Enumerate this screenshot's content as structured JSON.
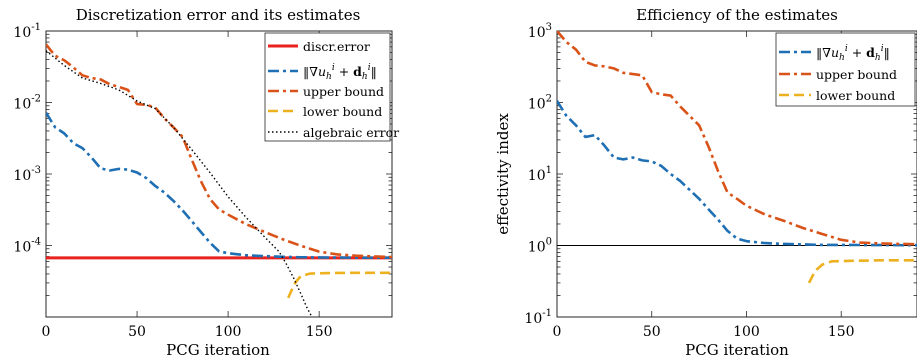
{
  "chart_data": [
    {
      "type": "line",
      "title": "Discretization error and its estimates",
      "xlabel": "PCG iteration",
      "ylabel": "",
      "xlim": [
        0,
        190
      ],
      "ylim": [
        1e-05,
        0.1
      ],
      "yscale": "log",
      "x_ticks": [
        "0",
        "50",
        "100",
        "150"
      ],
      "y_tick_base": "10",
      "y_tick_exponents": [
        "-1",
        "-2",
        "-3",
        "-4"
      ],
      "legend_position": "top-right",
      "series": [
        {
          "name": "discr.error",
          "color": "#e8231f",
          "dash": "solid",
          "points": [
            [
              0,
              6.72e-05
            ],
            [
              190,
              6.72e-05
            ]
          ]
        },
        {
          "name": "‖∇u_h^i + d_h^i‖",
          "color": "#1f6fb4",
          "dash": "dashdot",
          "points": [
            [
              0,
              0.0072
            ],
            [
              5,
              0.0045
            ],
            [
              10,
              0.0037
            ],
            [
              15,
              0.0027
            ],
            [
              20,
              0.0023
            ],
            [
              25,
              0.0017
            ],
            [
              30,
              0.0012
            ],
            [
              35,
              0.00112
            ],
            [
              40,
              0.00118
            ],
            [
              45,
              0.00115
            ],
            [
              50,
              0.00105
            ],
            [
              55,
              0.00088
            ],
            [
              60,
              0.00068
            ],
            [
              65,
              0.00055
            ],
            [
              70,
              0.00042
            ],
            [
              75,
              0.00031
            ],
            [
              80,
              0.00022
            ],
            [
              85,
              0.000155
            ],
            [
              90,
              0.00011
            ],
            [
              95,
              8.3e-05
            ],
            [
              100,
              7.8e-05
            ],
            [
              110,
              7.3e-05
            ],
            [
              120,
              7.1e-05
            ],
            [
              130,
              6.95e-05
            ],
            [
              140,
              6.85e-05
            ],
            [
              160,
              6.78e-05
            ],
            [
              190,
              6.74e-05
            ]
          ]
        },
        {
          "name": "upper bound",
          "color": "#d95319",
          "dash": "dashdot",
          "points": [
            [
              0,
              0.065
            ],
            [
              5,
              0.045
            ],
            [
              10,
              0.039
            ],
            [
              15,
              0.031
            ],
            [
              20,
              0.024
            ],
            [
              25,
              0.022
            ],
            [
              30,
              0.021
            ],
            [
              35,
              0.018
            ],
            [
              40,
              0.0165
            ],
            [
              45,
              0.015
            ],
            [
              50,
              0.0095
            ],
            [
              55,
              0.0093
            ],
            [
              60,
              0.0085
            ],
            [
              65,
              0.006
            ],
            [
              70,
              0.0045
            ],
            [
              75,
              0.0033
            ],
            [
              80,
              0.0016
            ],
            [
              85,
              0.0008
            ],
            [
              90,
              0.00045
            ],
            [
              95,
              0.00032
            ],
            [
              100,
              0.00027
            ],
            [
              110,
              0.000198
            ],
            [
              120,
              0.000155
            ],
            [
              130,
              0.000122
            ],
            [
              140,
              9.9e-05
            ],
            [
              150,
              8.2e-05
            ],
            [
              160,
              7.5e-05
            ],
            [
              170,
              7.2e-05
            ],
            [
              190,
              6.9e-05
            ]
          ]
        },
        {
          "name": "lower bound",
          "color": "#edb120",
          "dash": "dashed",
          "points": [
            [
              133,
              1.85e-05
            ],
            [
              135,
              2.4e-05
            ],
            [
              137,
              3.05e-05
            ],
            [
              140,
              3.75e-05
            ],
            [
              145,
              4.05e-05
            ],
            [
              155,
              4.12e-05
            ],
            [
              170,
              4.15e-05
            ],
            [
              190,
              4.15e-05
            ]
          ]
        },
        {
          "name": "algebraic error",
          "color": "#000000",
          "dash": "dotted",
          "points": [
            [
              0,
              0.053
            ],
            [
              10,
              0.033
            ],
            [
              20,
              0.022
            ],
            [
              30,
              0.0185
            ],
            [
              40,
              0.015
            ],
            [
              50,
              0.0105
            ],
            [
              60,
              0.0082
            ],
            [
              70,
              0.0045
            ],
            [
              80,
              0.0022
            ],
            [
              90,
              0.00105
            ],
            [
              100,
              0.00048
            ],
            [
              110,
              0.000245
            ],
            [
              120,
              0.000132
            ],
            [
              128,
              8.2e-05
            ],
            [
              132,
              5.5e-05
            ],
            [
              136,
              3.5e-05
            ],
            [
              140,
              2.1e-05
            ],
            [
              143,
              1.4e-05
            ],
            [
              146,
              1e-05
            ]
          ]
        }
      ]
    },
    {
      "type": "line",
      "title": "Efficiency of the estimates",
      "xlabel": "PCG iteration",
      "ylabel": "effectivity index",
      "xlim": [
        0,
        190
      ],
      "ylim": [
        0.1,
        1000
      ],
      "yscale": "log",
      "x_ticks": [
        "0",
        "50",
        "100",
        "150"
      ],
      "y_tick_base": "10",
      "y_tick_exponents": [
        "3",
        "2",
        "1",
        "0",
        "-1"
      ],
      "reference_line": 1,
      "legend_position": "top-right",
      "series": [
        {
          "name": "‖∇u_h^i + d_h^i‖",
          "color": "#1f6fb4",
          "dash": "dashdot",
          "points": [
            [
              0,
              105
            ],
            [
              5,
              65
            ],
            [
              10,
              48
            ],
            [
              15,
              33
            ],
            [
              20,
              35
            ],
            [
              25,
              25
            ],
            [
              30,
              17
            ],
            [
              35,
              16
            ],
            [
              40,
              17
            ],
            [
              45,
              15.5
            ],
            [
              50,
              15
            ],
            [
              55,
              13
            ],
            [
              60,
              10
            ],
            [
              65,
              8
            ],
            [
              70,
              6
            ],
            [
              75,
              4.5
            ],
            [
              80,
              3.2
            ],
            [
              85,
              2.3
            ],
            [
              90,
              1.6
            ],
            [
              95,
              1.25
            ],
            [
              100,
              1.15
            ],
            [
              110,
              1.08
            ],
            [
              120,
              1.05
            ],
            [
              140,
              1.02
            ],
            [
              190,
              1.01
            ]
          ]
        },
        {
          "name": "upper bound",
          "color": "#d95319",
          "dash": "dashdot",
          "points": [
            [
              0,
              1000
            ],
            [
              5,
              700
            ],
            [
              10,
              550
            ],
            [
              15,
              370
            ],
            [
              20,
              330
            ],
            [
              25,
              320
            ],
            [
              30,
              300
            ],
            [
              35,
              260
            ],
            [
              40,
              250
            ],
            [
              45,
              240
            ],
            [
              50,
              140
            ],
            [
              55,
              130
            ],
            [
              60,
              125
            ],
            [
              65,
              88
            ],
            [
              70,
              65
            ],
            [
              75,
              48
            ],
            [
              80,
              24
            ],
            [
              85,
              11
            ],
            [
              90,
              5.5
            ],
            [
              95,
              4.5
            ],
            [
              100,
              3.6
            ],
            [
              110,
              2.7
            ],
            [
              120,
              2.2
            ],
            [
              130,
              1.75
            ],
            [
              140,
              1.45
            ],
            [
              150,
              1.2
            ],
            [
              160,
              1.1
            ],
            [
              170,
              1.07
            ],
            [
              190,
              1.04
            ]
          ]
        },
        {
          "name": "lower bound",
          "color": "#edb120",
          "dash": "dashed",
          "points": [
            [
              133,
              0.3
            ],
            [
              135,
              0.38
            ],
            [
              137,
              0.46
            ],
            [
              140,
              0.54
            ],
            [
              145,
              0.6
            ],
            [
              155,
              0.61
            ],
            [
              170,
              0.62
            ],
            [
              190,
              0.62
            ]
          ]
        }
      ]
    }
  ]
}
